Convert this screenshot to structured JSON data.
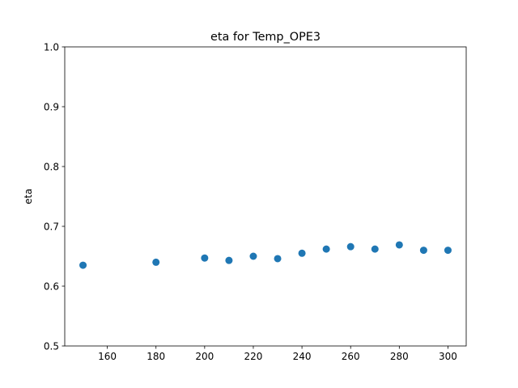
{
  "chart_data": {
    "type": "scatter",
    "title": "eta for Temp_OPE3",
    "xlabel": "",
    "ylabel": "eta",
    "xlim": [
      142.5,
      307.5
    ],
    "ylim": [
      0.5,
      1.0
    ],
    "xticks": [
      160,
      180,
      200,
      220,
      240,
      260,
      280,
      300
    ],
    "yticks": [
      0.5,
      0.6,
      0.7,
      0.8,
      0.9,
      1.0
    ],
    "grid": false,
    "marker_color": "#1f77b4",
    "series": [
      {
        "x": [
          150,
          180,
          200,
          210,
          220,
          230,
          240,
          250,
          260,
          270,
          280,
          290,
          300
        ],
        "y": [
          0.635,
          0.64,
          0.647,
          0.643,
          0.65,
          0.646,
          0.655,
          0.662,
          0.666,
          0.662,
          0.669,
          0.66,
          0.66
        ]
      }
    ]
  }
}
